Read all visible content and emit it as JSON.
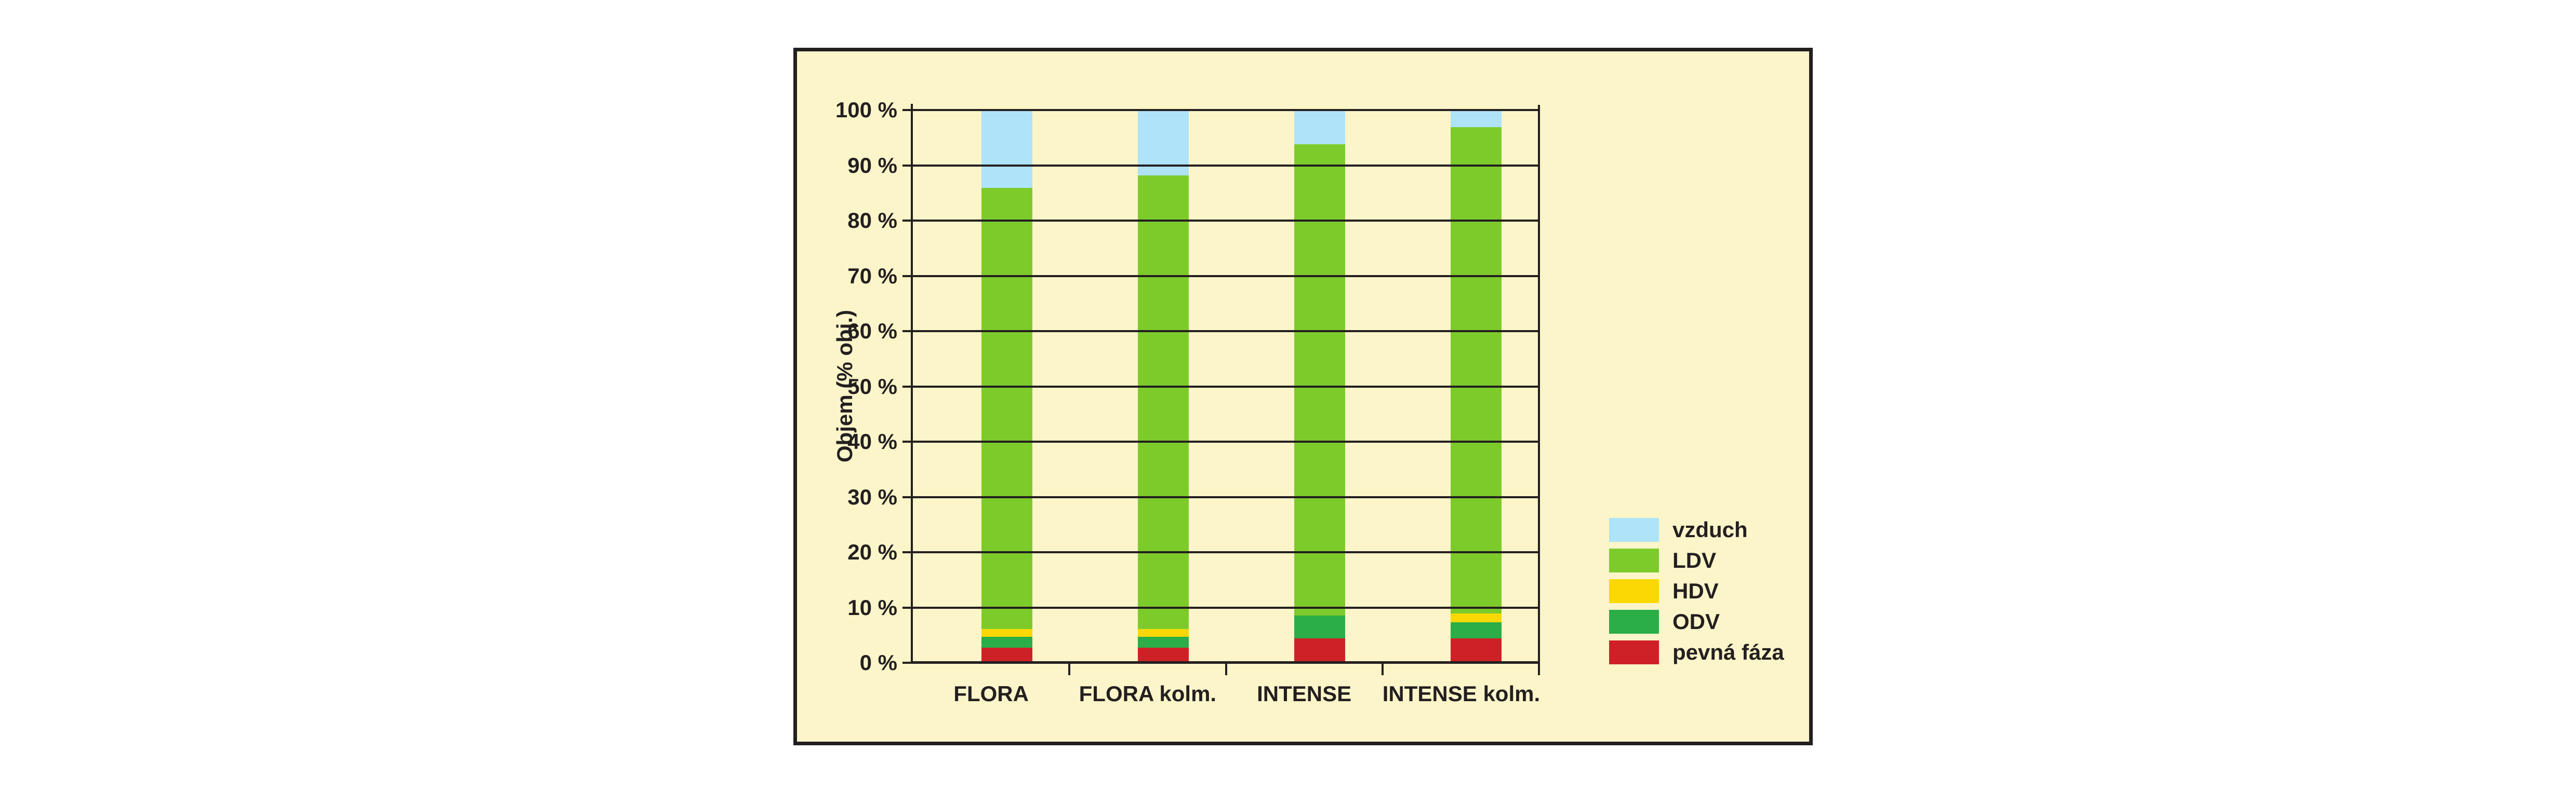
{
  "figure": {
    "background": "#ffffff",
    "panel_background": "#fbf5c9",
    "line_color": "#231f20",
    "text_color": "#231f20"
  },
  "chart_data": {
    "type": "bar",
    "stacked": true,
    "title": "",
    "xlabel": "",
    "ylabel": "Objem (% obj.)",
    "ylim": [
      0,
      100
    ],
    "grid": true,
    "legend_position": "right",
    "categories": [
      "FLORA",
      "FLORA kolm.",
      "INTENSE",
      "INTENSE kolm."
    ],
    "y_ticks": [
      0,
      10,
      20,
      30,
      40,
      50,
      60,
      70,
      80,
      90,
      100
    ],
    "y_tick_labels": [
      "0 %",
      "10 %",
      "20 %",
      "30 %",
      "40 %",
      "50 %",
      "60 %",
      "70 %",
      "80 %",
      "90 %",
      "100 %"
    ],
    "series": [
      {
        "name": "pevná fáza",
        "color": "#ce2127",
        "values": [
          2.7,
          2.7,
          4.4,
          4.4
        ]
      },
      {
        "name": "ODV",
        "color": "#2bad47",
        "values": [
          2.0,
          2.0,
          4.1,
          2.9
        ]
      },
      {
        "name": "HDV",
        "color": "#fbd803",
        "values": [
          1.4,
          1.4,
          0.0,
          1.6
        ]
      },
      {
        "name": "LDV",
        "color": "#7dcb2b",
        "values": [
          79.8,
          82.1,
          85.3,
          88.0
        ]
      },
      {
        "name": "vzduch",
        "color": "#aee3fa",
        "values": [
          14.1,
          11.8,
          6.2,
          3.1
        ]
      }
    ],
    "legend_items": [
      "vzduch",
      "LDV",
      "HDV",
      "ODV",
      "pevná fáza"
    ]
  }
}
